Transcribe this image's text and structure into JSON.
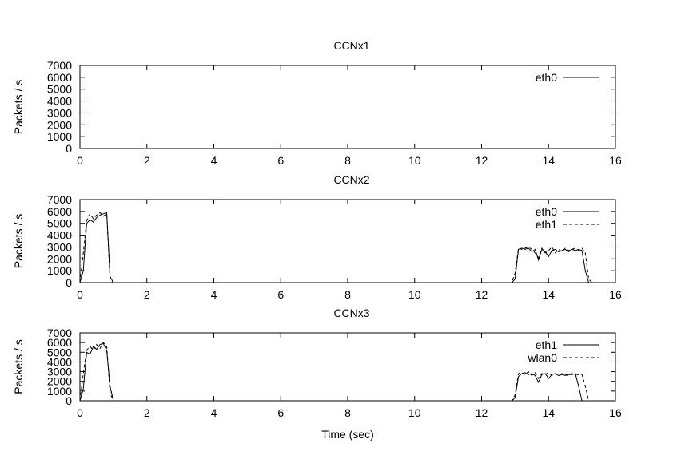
{
  "chart_data": [
    {
      "type": "line",
      "title": "CCNx1",
      "ylabel": "Packets / s",
      "xlabel": "",
      "xlim": [
        0,
        16
      ],
      "ylim": [
        0,
        7000
      ],
      "xticks": [
        0,
        2,
        4,
        6,
        8,
        10,
        12,
        14,
        16
      ],
      "yticks": [
        0,
        1000,
        2000,
        3000,
        4000,
        5000,
        6000,
        7000
      ],
      "legend_position": "top-right",
      "series": [
        {
          "name": "eth0",
          "style": "solid",
          "x": [
            0,
            16
          ],
          "y": [
            0,
            0
          ]
        }
      ]
    },
    {
      "type": "line",
      "title": "CCNx2",
      "ylabel": "Packets / s",
      "xlabel": "",
      "xlim": [
        0,
        16
      ],
      "ylim": [
        0,
        7000
      ],
      "xticks": [
        0,
        2,
        4,
        6,
        8,
        10,
        12,
        14,
        16
      ],
      "yticks": [
        0,
        1000,
        2000,
        3000,
        4000,
        5000,
        6000,
        7000
      ],
      "legend_position": "top-right",
      "series": [
        {
          "name": "eth0",
          "style": "solid",
          "x": [
            0,
            0.1,
            0.2,
            0.3,
            0.4,
            0.5,
            0.6,
            0.7,
            0.8,
            0.9,
            1.0,
            1.1,
            12.9,
            13.0,
            13.1,
            13.2,
            13.3,
            13.4,
            13.5,
            13.6,
            13.7,
            13.8,
            13.9,
            14.0,
            14.1,
            14.2,
            14.3,
            14.4,
            14.5,
            14.6,
            14.7,
            14.8,
            14.9,
            15.0,
            15.1,
            15.2,
            15.3,
            16
          ],
          "y": [
            0,
            1000,
            5000,
            5300,
            5100,
            5500,
            5700,
            5800,
            5900,
            500,
            0,
            0,
            0,
            300,
            2800,
            2900,
            2800,
            2900,
            2600,
            2800,
            1900,
            2800,
            2600,
            2200,
            2700,
            2800,
            2600,
            2700,
            2800,
            2600,
            2800,
            2700,
            2800,
            2700,
            1000,
            0,
            0,
            0
          ]
        },
        {
          "name": "eth1",
          "style": "dashed",
          "x": [
            0,
            0.1,
            0.2,
            0.3,
            0.4,
            0.5,
            0.6,
            0.7,
            0.8,
            0.9,
            1.0,
            1.1,
            12.9,
            13.0,
            13.1,
            13.2,
            13.3,
            13.4,
            13.5,
            13.6,
            13.7,
            13.8,
            13.9,
            14.0,
            14.1,
            14.2,
            14.3,
            14.4,
            14.5,
            14.6,
            14.7,
            14.8,
            14.9,
            15.0,
            15.1,
            15.2,
            15.3,
            16
          ],
          "y": [
            0,
            2500,
            5200,
            5800,
            5400,
            5700,
            5900,
            5600,
            5800,
            300,
            0,
            0,
            0,
            800,
            2900,
            2800,
            2900,
            3000,
            2800,
            2500,
            2100,
            2900,
            2500,
            2700,
            3000,
            2500,
            2800,
            2600,
            2900,
            2700,
            2800,
            2900,
            2700,
            2900,
            2500,
            300,
            0,
            0
          ]
        }
      ]
    },
    {
      "type": "line",
      "title": "CCNx3",
      "ylabel": "Packets / s",
      "xlabel": "Time (sec)",
      "xlim": [
        0,
        16
      ],
      "ylim": [
        0,
        7000
      ],
      "xticks": [
        0,
        2,
        4,
        6,
        8,
        10,
        12,
        14,
        16
      ],
      "yticks": [
        0,
        1000,
        2000,
        3000,
        4000,
        5000,
        6000,
        7000
      ],
      "legend_position": "top-right",
      "series": [
        {
          "name": "eth1",
          "style": "solid",
          "x": [
            0,
            0.1,
            0.2,
            0.3,
            0.4,
            0.5,
            0.6,
            0.7,
            0.8,
            0.9,
            1.0,
            1.1,
            12.9,
            13.0,
            13.1,
            13.2,
            13.3,
            13.4,
            13.5,
            13.6,
            13.7,
            13.8,
            13.9,
            14.0,
            14.1,
            14.2,
            14.3,
            14.4,
            14.5,
            14.6,
            14.7,
            14.8,
            14.9,
            15.0,
            15.1,
            16
          ],
          "y": [
            0,
            1200,
            5000,
            4800,
            5600,
            5300,
            5800,
            5900,
            5200,
            1500,
            0,
            0,
            0,
            300,
            2500,
            2800,
            2900,
            2700,
            2800,
            2600,
            1900,
            2700,
            2800,
            2300,
            2700,
            2800,
            2600,
            2700,
            2600,
            2700,
            2700,
            2800,
            1500,
            0,
            0,
            0
          ]
        },
        {
          "name": "wlan0",
          "style": "dashed",
          "x": [
            0,
            0.1,
            0.2,
            0.3,
            0.4,
            0.5,
            0.6,
            0.7,
            0.8,
            0.9,
            1.0,
            1.1,
            12.9,
            13.0,
            13.1,
            13.2,
            13.3,
            13.4,
            13.5,
            13.6,
            13.7,
            13.8,
            13.9,
            14.0,
            14.1,
            14.2,
            14.3,
            14.4,
            14.5,
            14.6,
            14.7,
            14.8,
            14.9,
            15.0,
            15.1,
            15.2,
            16
          ],
          "y": [
            0,
            2800,
            5200,
            5600,
            5200,
            5800,
            5400,
            6000,
            5600,
            800,
            0,
            0,
            0,
            600,
            2800,
            2900,
            2700,
            3000,
            2600,
            2900,
            2300,
            2800,
            2700,
            2900,
            2600,
            2800,
            2700,
            2800,
            2700,
            2600,
            2800,
            2700,
            2700,
            2700,
            1500,
            0,
            0
          ]
        }
      ]
    }
  ]
}
